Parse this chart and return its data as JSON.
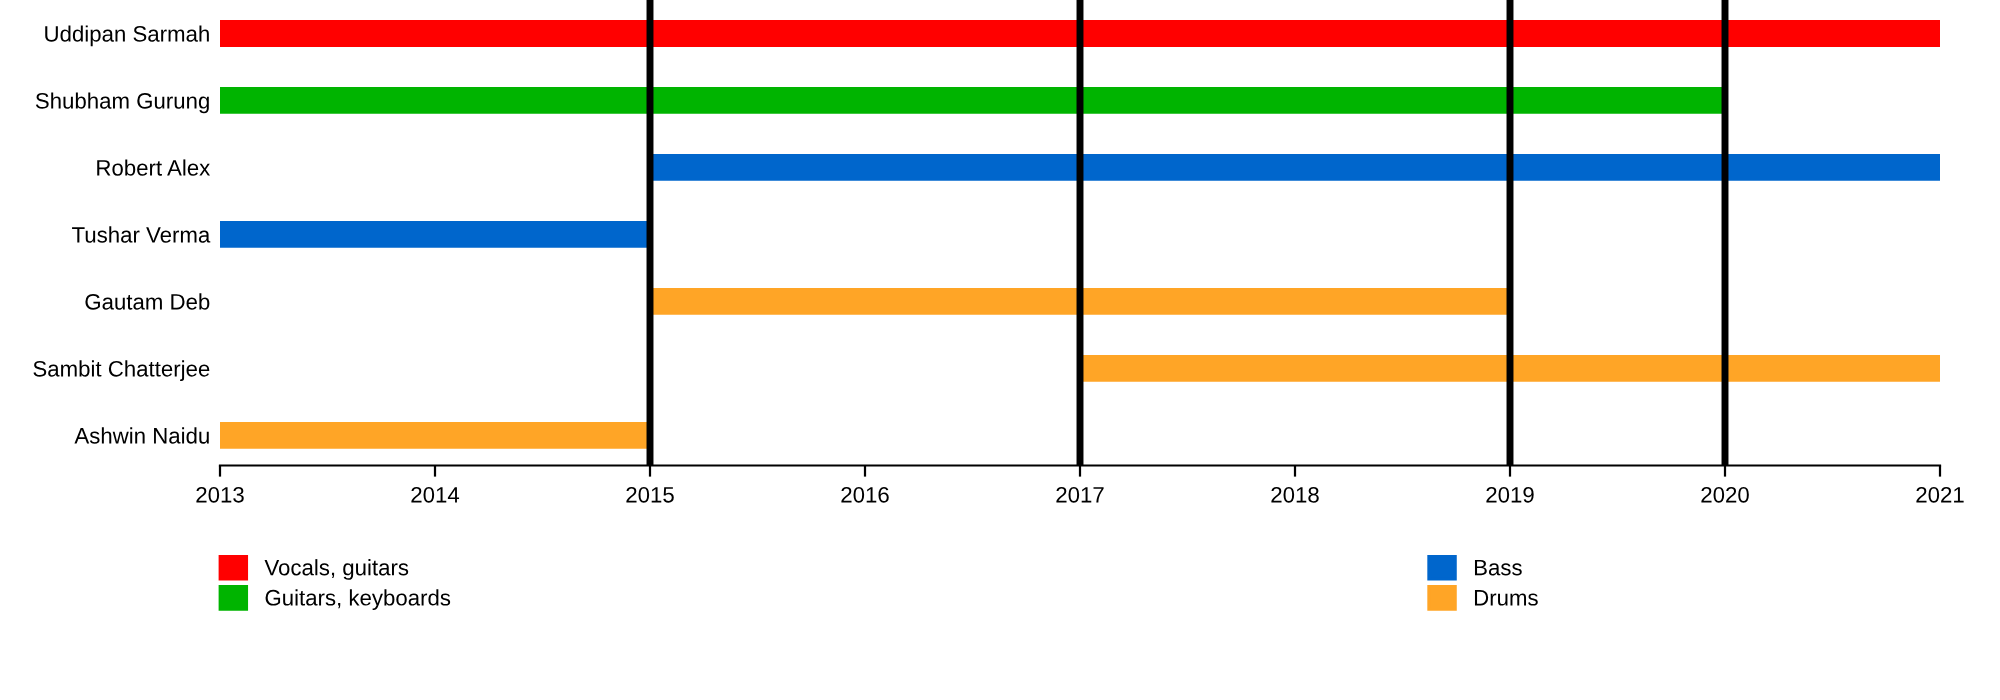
{
  "chart_data": {
    "type": "bar",
    "orientation": "horizontal",
    "categories": [
      "Uddipan Sarmah",
      "Shubham Gurung",
      "Robert Alex",
      "Tushar Verma",
      "Gautam Deb",
      "Sambit Chatterjee",
      "Ashwin Naidu"
    ],
    "series": [
      {
        "name": "Vocals, guitars",
        "color": "#ff0000",
        "base": [
          2013,
          null,
          null,
          null,
          null,
          null,
          null
        ],
        "values": [
          8,
          null,
          null,
          null,
          null,
          null,
          null
        ]
      },
      {
        "name": "Guitars, keyboards",
        "color": "#00b400",
        "base": [
          null,
          2013,
          null,
          null,
          null,
          null,
          null
        ],
        "values": [
          null,
          7,
          null,
          null,
          null,
          null,
          null
        ]
      },
      {
        "name": "Bass",
        "color": "#0066cc",
        "base": [
          null,
          null,
          2015,
          2013,
          null,
          null,
          null
        ],
        "values": [
          null,
          null,
          6,
          2,
          null,
          null,
          null
        ]
      },
      {
        "name": "Drums",
        "color": "#ffa526",
        "base": [
          null,
          null,
          null,
          null,
          2015,
          2017,
          2013
        ],
        "values": [
          null,
          null,
          null,
          null,
          4,
          4,
          2
        ]
      }
    ],
    "xlim": [
      2013,
      2021
    ],
    "xticks": [
      2013,
      2014,
      2015,
      2016,
      2017,
      2018,
      2019,
      2020,
      2021
    ],
    "ref_lines": [
      {
        "axis": "x",
        "value": 2015,
        "color": "#000000"
      },
      {
        "axis": "x",
        "value": 2017,
        "color": "#000000"
      },
      {
        "axis": "x",
        "value": 2019,
        "color": "#000000"
      },
      {
        "axis": "x",
        "value": 2020,
        "color": "#000000"
      }
    ],
    "grid": false,
    "legend": "bottom"
  }
}
